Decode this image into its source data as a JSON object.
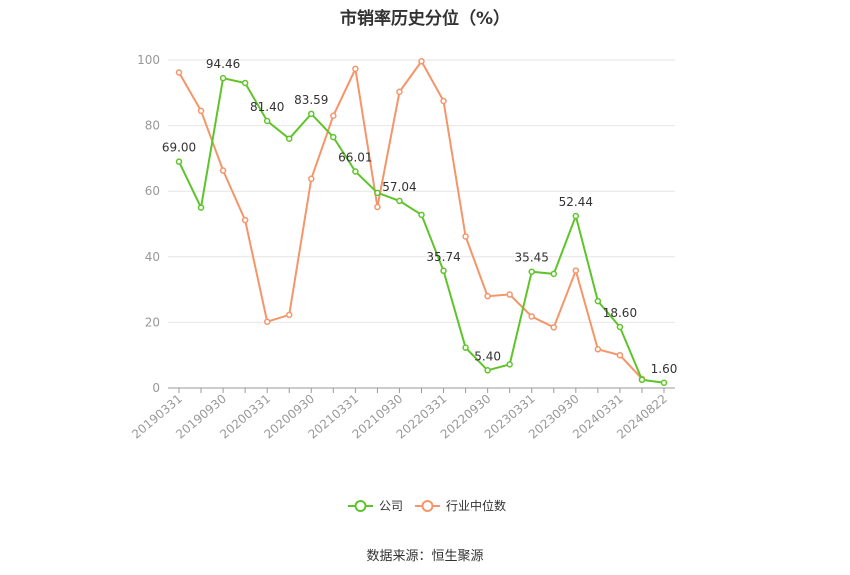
{
  "title": "市销率历史分位（%）",
  "source": "数据来源：恒生聚源",
  "chart_data": {
    "type": "line",
    "title": "市销率历史分位（%）",
    "ylim": [
      0,
      100
    ],
    "yticks": [
      0,
      20,
      40,
      60,
      80,
      100
    ],
    "grid": true,
    "legend_position": "bottom",
    "x": [
      "20190331",
      "20190630",
      "20190930",
      "20191231",
      "20200331",
      "20200630",
      "20200930",
      "20201231",
      "20210331",
      "20210630",
      "20210930",
      "20211231",
      "20220331",
      "20220630",
      "20220930",
      "20221231",
      "20230331",
      "20230630",
      "20230930",
      "20231231",
      "20240331",
      "20240630",
      "20240822"
    ],
    "xticks": [
      "20190331",
      "20190930",
      "20200331",
      "20200930",
      "20210331",
      "20210930",
      "20220331",
      "20220930",
      "20230331",
      "20230930",
      "20240331",
      "20240822"
    ],
    "series": [
      {
        "name": "公司",
        "color": "#5fc42b",
        "values": [
          69.0,
          55.0,
          94.46,
          93.0,
          81.4,
          76.0,
          83.59,
          76.5,
          66.01,
          59.5,
          57.04,
          52.8,
          35.74,
          12.3,
          5.4,
          7.2,
          35.45,
          34.8,
          52.44,
          26.5,
          18.6,
          2.5,
          1.6
        ],
        "labels": {
          "0": "69.00",
          "2": "94.46",
          "4": "81.40",
          "6": "83.59",
          "8": "66.01",
          "10": "57.04",
          "12": "35.74",
          "14": "5.40",
          "16": "35.45",
          "18": "52.44",
          "20": "18.60",
          "22": "1.60"
        }
      },
      {
        "name": "行业中位数",
        "color": "#f4956a",
        "values": [
          96.2,
          84.5,
          66.3,
          51.2,
          20.2,
          22.3,
          63.8,
          83.0,
          97.3,
          55.2,
          90.3,
          99.6,
          87.5,
          46.2,
          28.0,
          28.5,
          21.8,
          18.5,
          35.8,
          11.8,
          10.0,
          2.8,
          null
        ]
      }
    ]
  }
}
